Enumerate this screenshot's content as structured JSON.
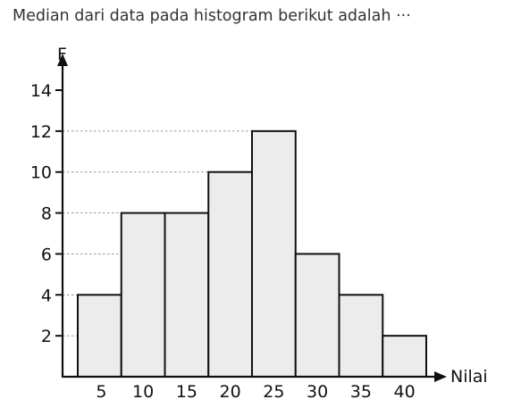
{
  "question": {
    "text": "Median dari data pada histogram berikut adalah ⋅⋅⋅"
  },
  "chart_data": {
    "type": "bar",
    "title": "",
    "xlabel": "Nilai",
    "ylabel": "F",
    "categories": [
      "5",
      "10",
      "15",
      "20",
      "25",
      "30",
      "35",
      "40"
    ],
    "values": [
      4,
      8,
      8,
      10,
      12,
      6,
      4,
      2
    ],
    "ylim": [
      0,
      14
    ],
    "yticks": [
      2,
      4,
      6,
      8,
      10,
      12,
      14
    ],
    "grid": "dashed horizontal",
    "bar_color": "#ececec",
    "bar_edge_color": "#111111",
    "grid_color": "#888888"
  }
}
